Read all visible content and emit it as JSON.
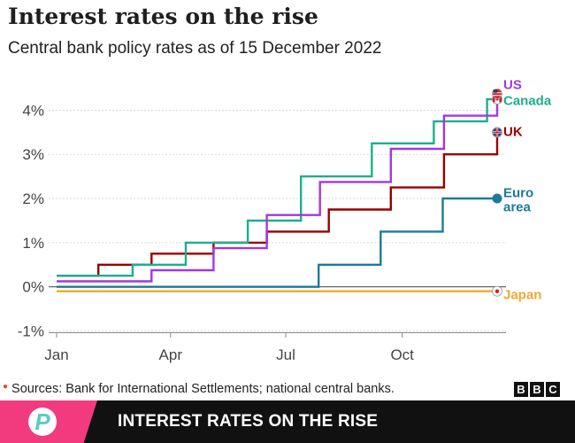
{
  "header": {
    "title": "Interest rates on the rise",
    "subtitle": "Central bank policy rates as of 15 December 2022"
  },
  "footer": {
    "source": "Sources: Bank for International Settlements; national central banks.",
    "bbc_letters": [
      "B",
      "B",
      "C"
    ]
  },
  "banner": {
    "text": "INTEREST RATES ON THE RISE",
    "logo_letter": "P",
    "accent_color": "#f23a7f"
  },
  "chart_data": {
    "type": "line",
    "step": true,
    "title": "Interest rates on the rise",
    "subtitle": "Central bank policy rates as of 15 December 2022",
    "xlabel": "",
    "ylabel": "",
    "xlim": [
      "2022-01-01",
      "2022-12-15"
    ],
    "ylim": [
      -1,
      4.5
    ],
    "y_ticks": [
      -1,
      0,
      1,
      2,
      3,
      4
    ],
    "y_tick_labels": [
      "-1%",
      "0%",
      "1%",
      "2%",
      "3%",
      "4%"
    ],
    "x_ticks": [
      "2022-01-01",
      "2022-04-01",
      "2022-07-01",
      "2022-10-01"
    ],
    "x_tick_labels": [
      "Jan",
      "Apr",
      "Jul",
      "Oct"
    ],
    "grid": true,
    "series": [
      {
        "name": "Japan",
        "color": "#f0a830",
        "label_lines": [
          "Japan"
        ],
        "marker": "flag-japan",
        "points": [
          [
            "2022-01-01",
            -0.1
          ],
          [
            "2022-12-15",
            -0.1
          ]
        ]
      },
      {
        "name": "Euro area",
        "color": "#1c7a9a",
        "label_lines": [
          "Euro",
          "area"
        ],
        "marker": "dot",
        "points": [
          [
            "2022-01-01",
            0
          ],
          [
            "2022-07-27",
            0
          ],
          [
            "2022-07-27",
            0.5
          ],
          [
            "2022-09-14",
            0.5
          ],
          [
            "2022-09-14",
            1.25
          ],
          [
            "2022-11-02",
            1.25
          ],
          [
            "2022-11-02",
            2
          ],
          [
            "2022-12-15",
            2
          ]
        ]
      },
      {
        "name": "UK",
        "color": "#990000",
        "label_lines": [
          "UK"
        ],
        "marker": "flag-uk",
        "points": [
          [
            "2022-01-01",
            0.25
          ],
          [
            "2022-02-03",
            0.25
          ],
          [
            "2022-02-03",
            0.5
          ],
          [
            "2022-03-17",
            0.5
          ],
          [
            "2022-03-17",
            0.75
          ],
          [
            "2022-05-05",
            0.75
          ],
          [
            "2022-05-05",
            1
          ],
          [
            "2022-06-16",
            1
          ],
          [
            "2022-06-16",
            1.25
          ],
          [
            "2022-08-04",
            1.25
          ],
          [
            "2022-08-04",
            1.75
          ],
          [
            "2022-09-22",
            1.75
          ],
          [
            "2022-09-22",
            2.25
          ],
          [
            "2022-11-03",
            2.25
          ],
          [
            "2022-11-03",
            3
          ],
          [
            "2022-12-15",
            3
          ],
          [
            "2022-12-15",
            3.5
          ]
        ]
      },
      {
        "name": "Canada",
        "color": "#1dae8e",
        "label_lines": [
          "Canada"
        ],
        "marker": "flag-canada",
        "points": [
          [
            "2022-01-01",
            0.25
          ],
          [
            "2022-03-02",
            0.25
          ],
          [
            "2022-03-02",
            0.5
          ],
          [
            "2022-04-13",
            0.5
          ],
          [
            "2022-04-13",
            1
          ],
          [
            "2022-06-01",
            1
          ],
          [
            "2022-06-01",
            1.5
          ],
          [
            "2022-07-13",
            1.5
          ],
          [
            "2022-07-13",
            2.5
          ],
          [
            "2022-09-07",
            2.5
          ],
          [
            "2022-09-07",
            3.25
          ],
          [
            "2022-10-26",
            3.25
          ],
          [
            "2022-10-26",
            3.75
          ],
          [
            "2022-12-07",
            3.75
          ],
          [
            "2022-12-07",
            4.25
          ],
          [
            "2022-12-15",
            4.25
          ]
        ]
      },
      {
        "name": "US",
        "color": "#a337e0",
        "label_lines": [
          "US"
        ],
        "marker": "flag-us",
        "points": [
          [
            "2022-01-01",
            0.125
          ],
          [
            "2022-03-17",
            0.125
          ],
          [
            "2022-03-17",
            0.375
          ],
          [
            "2022-05-05",
            0.375
          ],
          [
            "2022-05-05",
            0.875
          ],
          [
            "2022-06-16",
            0.875
          ],
          [
            "2022-06-16",
            1.625
          ],
          [
            "2022-07-28",
            1.625
          ],
          [
            "2022-07-28",
            2.375
          ],
          [
            "2022-09-22",
            2.375
          ],
          [
            "2022-09-22",
            3.125
          ],
          [
            "2022-11-03",
            3.125
          ],
          [
            "2022-11-03",
            3.875
          ],
          [
            "2022-12-15",
            3.875
          ],
          [
            "2022-12-15",
            4.375
          ]
        ]
      }
    ]
  }
}
